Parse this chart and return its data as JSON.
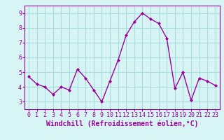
{
  "x": [
    0,
    1,
    2,
    3,
    4,
    5,
    6,
    7,
    8,
    9,
    10,
    11,
    12,
    13,
    14,
    15,
    16,
    17,
    18,
    19,
    20,
    21,
    22,
    23
  ],
  "y": [
    4.7,
    4.2,
    4.0,
    3.5,
    4.0,
    3.8,
    5.2,
    4.6,
    3.8,
    3.0,
    4.4,
    5.8,
    7.5,
    8.4,
    9.0,
    8.6,
    8.3,
    7.3,
    3.9,
    5.0,
    3.1,
    4.6,
    4.4,
    4.1
  ],
  "line_color": "#990099",
  "marker": "D",
  "marker_size": 2,
  "bg_color": "#d8f5f5",
  "grid_color": "#aadddd",
  "xlabel": "Windchill (Refroidissement éolien,°C)",
  "xlim": [
    -0.5,
    23.5
  ],
  "ylim": [
    2.5,
    9.5
  ],
  "yticks": [
    3,
    4,
    5,
    6,
    7,
    8,
    9
  ],
  "xticks": [
    0,
    1,
    2,
    3,
    4,
    5,
    6,
    7,
    8,
    9,
    10,
    11,
    12,
    13,
    14,
    15,
    16,
    17,
    18,
    19,
    20,
    21,
    22,
    23
  ],
  "xlabel_fontsize": 7,
  "tick_fontsize": 6,
  "axis_color": "#990099",
  "spine_color": "#990099",
  "title": ""
}
